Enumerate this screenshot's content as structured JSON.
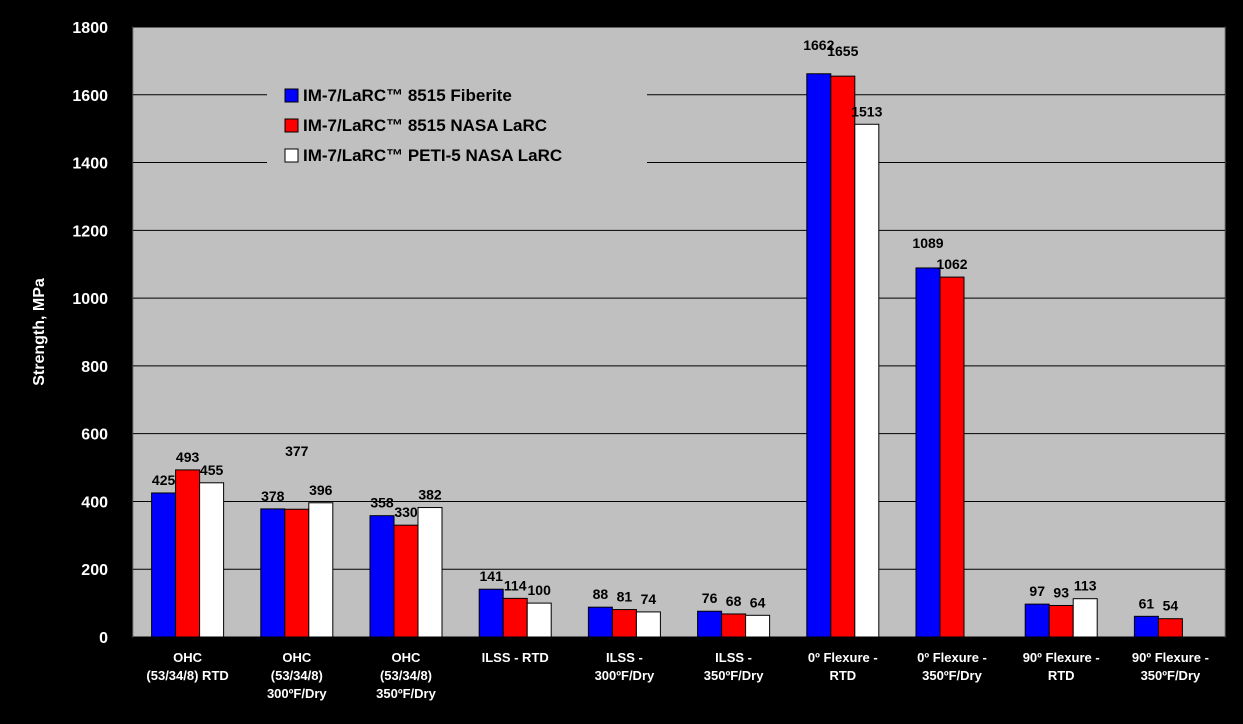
{
  "chart_data": {
    "type": "bar",
    "title": "",
    "xlabel": "",
    "ylabel": "Strength, MPa",
    "ylim": [
      0,
      1800
    ],
    "yticks": [
      0,
      200,
      400,
      600,
      800,
      1000,
      1200,
      1400,
      1600,
      1800
    ],
    "grid": true,
    "legend_position": "top-left",
    "categories": [
      [
        "OHC",
        "(53/34/8) RTD"
      ],
      [
        "OHC",
        "(53/34/8)",
        "300ºF/Dry"
      ],
      [
        "OHC",
        "(53/34/8)",
        "350ºF/Dry"
      ],
      [
        "ILSS - RTD"
      ],
      [
        "ILSS -",
        "300ºF/Dry"
      ],
      [
        "ILSS -",
        "350ºF/Dry"
      ],
      [
        "0º Flexure -",
        "RTD"
      ],
      [
        "0º Flexure -",
        "350ºF/Dry"
      ],
      [
        "90º Flexure -",
        "RTD"
      ],
      [
        "90º Flexure -",
        "350ºF/Dry"
      ]
    ],
    "series": [
      {
        "name": "IM-7/LaRC™ 8515 Fiberite",
        "color": "#0000FF",
        "values": [
          425,
          378,
          358,
          141,
          88,
          76,
          1662,
          1089,
          97,
          61
        ],
        "labels": [
          "425",
          "378",
          "358",
          "141",
          "88",
          "76",
          "1662",
          "1089",
          "97",
          "61"
        ]
      },
      {
        "name": "IM-7/LaRC™ 8515 NASA LaRC",
        "color": "#FF0000",
        "values": [
          493,
          377,
          330,
          114,
          81,
          68,
          1655,
          1062,
          93,
          54
        ],
        "labels": [
          "493",
          "377",
          "330",
          "114",
          "81",
          "68",
          "1655",
          "1062",
          "93",
          "54"
        ]
      },
      {
        "name": "IM-7/LaRC™ PETI-5 NASA LaRC",
        "color": "#FFFFFF",
        "values": [
          455,
          396,
          382,
          100,
          74,
          64,
          1513,
          null,
          113,
          null
        ],
        "labels": [
          "455",
          "396",
          "382",
          "100",
          "74",
          "64",
          "1513",
          null,
          "113",
          null
        ]
      }
    ],
    "colors": {
      "background": "#000000",
      "plot_area": "#C0C0C0",
      "grid": "#000000",
      "text": "#000000",
      "axis_text": "#FFFFFF"
    }
  }
}
